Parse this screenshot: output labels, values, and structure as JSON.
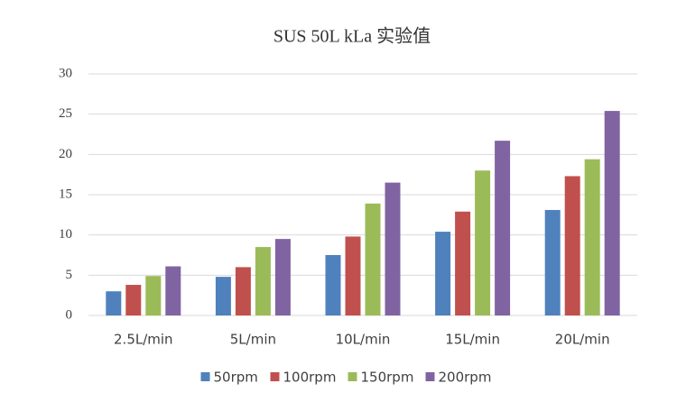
{
  "chart_data": {
    "type": "bar",
    "title": "SUS 50L kLa 实验值",
    "categories": [
      "2.5L/min",
      "5L/min",
      "10L/min",
      "15L/min",
      "20L/min"
    ],
    "series": [
      {
        "name": "50rpm",
        "color": "#4f81bd",
        "values": [
          3.0,
          4.8,
          7.5,
          10.4,
          13.1
        ]
      },
      {
        "name": "100rpm",
        "color": "#c0504d",
        "values": [
          3.8,
          6.0,
          9.8,
          12.9,
          17.3
        ]
      },
      {
        "name": "150rpm",
        "color": "#9bbb59",
        "values": [
          4.9,
          8.5,
          13.9,
          18.0,
          19.4
        ]
      },
      {
        "name": "200rpm",
        "color": "#8064a2",
        "values": [
          6.1,
          9.5,
          16.5,
          21.7,
          25.4
        ]
      }
    ],
    "ylim": [
      0,
      30
    ],
    "yticks": [
      0,
      5,
      10,
      15,
      20,
      25,
      30
    ],
    "grid": true,
    "legend": "bottom"
  }
}
